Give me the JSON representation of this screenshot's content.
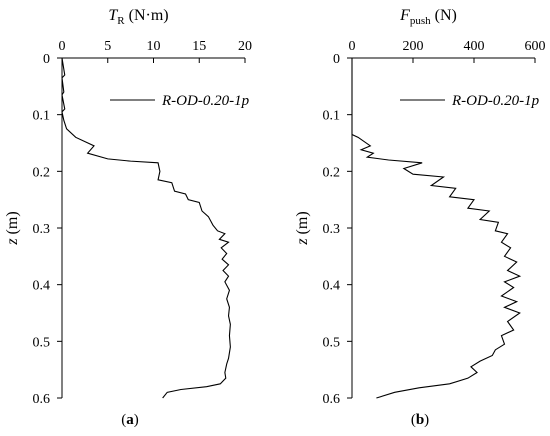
{
  "chart_data": [
    {
      "type": "line",
      "panel_label": "a",
      "xlabel_main": "T",
      "xlabel_sub": "R",
      "xlabel_unit": " (N·m)",
      "ylabel_main": "z",
      "ylabel_unit": " (m)",
      "xlim": [
        0,
        20
      ],
      "ylim": [
        0,
        0.6
      ],
      "x_axis_position": "top",
      "y_inverted": true,
      "xticks": [
        0,
        5,
        10,
        15,
        20
      ],
      "yticks": [
        0,
        0.1,
        0.2,
        0.3,
        0.4,
        0.5,
        0.6
      ],
      "ytick_labels": [
        "0",
        "0.1",
        "0.2",
        "0.3",
        "0.4",
        "0.5",
        "0.6"
      ],
      "legend_placement": "top-right",
      "series": [
        {
          "name": "R-OD-0.20-1p",
          "color": "#000000",
          "points": [
            [
              0,
              0.0
            ],
            [
              0.3,
              0.03
            ],
            [
              0,
              0.035
            ],
            [
              0.2,
              0.06
            ],
            [
              0,
              0.065
            ],
            [
              0.3,
              0.09
            ],
            [
              0,
              0.095
            ],
            [
              0.2,
              0.11
            ],
            [
              0.5,
              0.125
            ],
            [
              1.5,
              0.14
            ],
            [
              3.5,
              0.155
            ],
            [
              2.8,
              0.168
            ],
            [
              5.0,
              0.178
            ],
            [
              7.5,
              0.182
            ],
            [
              10.5,
              0.185
            ],
            [
              10.7,
              0.2
            ],
            [
              10.5,
              0.215
            ],
            [
              12.0,
              0.22
            ],
            [
              12.3,
              0.235
            ],
            [
              13.5,
              0.24
            ],
            [
              13.8,
              0.25
            ],
            [
              15.0,
              0.255
            ],
            [
              15.3,
              0.27
            ],
            [
              16.0,
              0.28
            ],
            [
              16.5,
              0.295
            ],
            [
              17.0,
              0.305
            ],
            [
              17.8,
              0.31
            ],
            [
              17.2,
              0.32
            ],
            [
              18.2,
              0.325
            ],
            [
              17.4,
              0.335
            ],
            [
              18.0,
              0.345
            ],
            [
              17.5,
              0.355
            ],
            [
              18.2,
              0.365
            ],
            [
              17.6,
              0.375
            ],
            [
              18.2,
              0.385
            ],
            [
              17.8,
              0.395
            ],
            [
              18.3,
              0.41
            ],
            [
              18.0,
              0.425
            ],
            [
              18.3,
              0.44
            ],
            [
              18.2,
              0.455
            ],
            [
              18.4,
              0.47
            ],
            [
              18.3,
              0.49
            ],
            [
              18.4,
              0.51
            ],
            [
              18.2,
              0.53
            ],
            [
              18.0,
              0.54
            ],
            [
              17.8,
              0.555
            ],
            [
              17.9,
              0.565
            ],
            [
              17.3,
              0.575
            ],
            [
              15.8,
              0.58
            ],
            [
              13.0,
              0.585
            ],
            [
              11.5,
              0.59
            ],
            [
              11.0,
              0.6
            ]
          ]
        }
      ]
    },
    {
      "type": "line",
      "panel_label": "b",
      "xlabel_main": "F",
      "xlabel_sub": "push",
      "xlabel_unit": " (N)",
      "ylabel_main": "z",
      "ylabel_unit": " (m)",
      "xlim": [
        0,
        600
      ],
      "ylim": [
        0,
        0.6
      ],
      "x_axis_position": "top",
      "y_inverted": true,
      "xticks": [
        0,
        200,
        400,
        600
      ],
      "yticks": [
        0,
        0.1,
        0.2,
        0.3,
        0.4,
        0.5,
        0.6
      ],
      "ytick_labels": [
        "0",
        "0.1",
        "0.2",
        "0.3",
        "0.4",
        "0.5",
        "0.6"
      ],
      "legend_placement": "top-right",
      "series": [
        {
          "name": "R-OD-0.20-1p",
          "color": "#000000",
          "points": [
            [
              0,
              0.0
            ],
            [
              0,
              0.135
            ],
            [
              20,
              0.14
            ],
            [
              60,
              0.155
            ],
            [
              30,
              0.162
            ],
            [
              70,
              0.168
            ],
            [
              50,
              0.175
            ],
            [
              120,
              0.18
            ],
            [
              230,
              0.185
            ],
            [
              170,
              0.195
            ],
            [
              200,
              0.205
            ],
            [
              300,
              0.21
            ],
            [
              260,
              0.225
            ],
            [
              340,
              0.23
            ],
            [
              320,
              0.245
            ],
            [
              400,
              0.25
            ],
            [
              380,
              0.265
            ],
            [
              450,
              0.27
            ],
            [
              420,
              0.285
            ],
            [
              480,
              0.29
            ],
            [
              470,
              0.305
            ],
            [
              510,
              0.31
            ],
            [
              490,
              0.325
            ],
            [
              520,
              0.335
            ],
            [
              500,
              0.35
            ],
            [
              540,
              0.36
            ],
            [
              510,
              0.375
            ],
            [
              550,
              0.385
            ],
            [
              500,
              0.395
            ],
            [
              530,
              0.405
            ],
            [
              490,
              0.42
            ],
            [
              540,
              0.43
            ],
            [
              500,
              0.44
            ],
            [
              550,
              0.45
            ],
            [
              510,
              0.465
            ],
            [
              530,
              0.48
            ],
            [
              490,
              0.49
            ],
            [
              500,
              0.505
            ],
            [
              470,
              0.515
            ],
            [
              460,
              0.525
            ],
            [
              420,
              0.535
            ],
            [
              390,
              0.545
            ],
            [
              410,
              0.555
            ],
            [
              380,
              0.565
            ],
            [
              320,
              0.575
            ],
            [
              220,
              0.582
            ],
            [
              140,
              0.59
            ],
            [
              80,
              0.6
            ]
          ]
        }
      ]
    }
  ]
}
